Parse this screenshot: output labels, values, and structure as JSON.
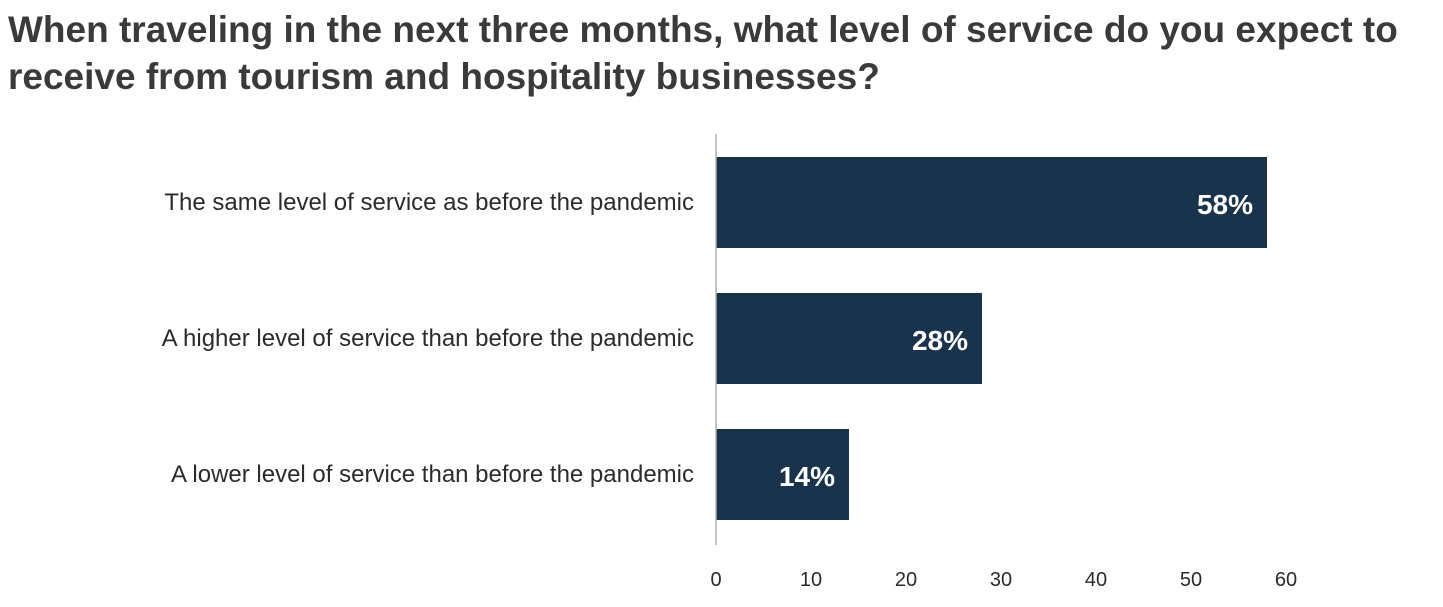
{
  "chart_data": {
    "type": "bar",
    "orientation": "horizontal",
    "title": "When traveling in the next three months, what level of service do you expect to receive from tourism and hospitality businesses?",
    "categories": [
      "The same level of service as before the pandemic",
      "A higher level of service than before the pandemic",
      "A lower level of service than before the pandemic"
    ],
    "values": [
      58,
      28,
      14
    ],
    "data_labels": [
      "58%",
      "28%",
      "14%"
    ],
    "xlim": [
      0,
      60
    ],
    "x_ticks": [
      0,
      10,
      20,
      30,
      40,
      50,
      60
    ],
    "grid": false,
    "legend": "none",
    "colors": {
      "bar": "#1a334d",
      "axis": "#b0b0b0",
      "data_label": "#ffffff"
    }
  }
}
